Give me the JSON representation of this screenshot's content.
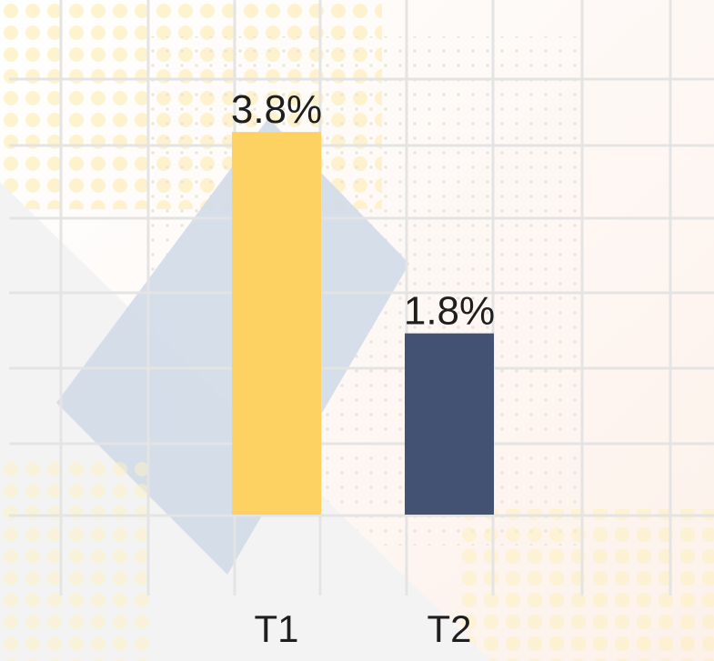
{
  "chart_data": {
    "type": "bar",
    "categories": [
      "T1",
      "T2"
    ],
    "values": [
      3.8,
      1.8
    ],
    "value_labels": [
      "3.8%",
      "1.8%"
    ],
    "colors": [
      "#fdd262",
      "#435173"
    ],
    "ylim": [
      0,
      4
    ]
  }
}
